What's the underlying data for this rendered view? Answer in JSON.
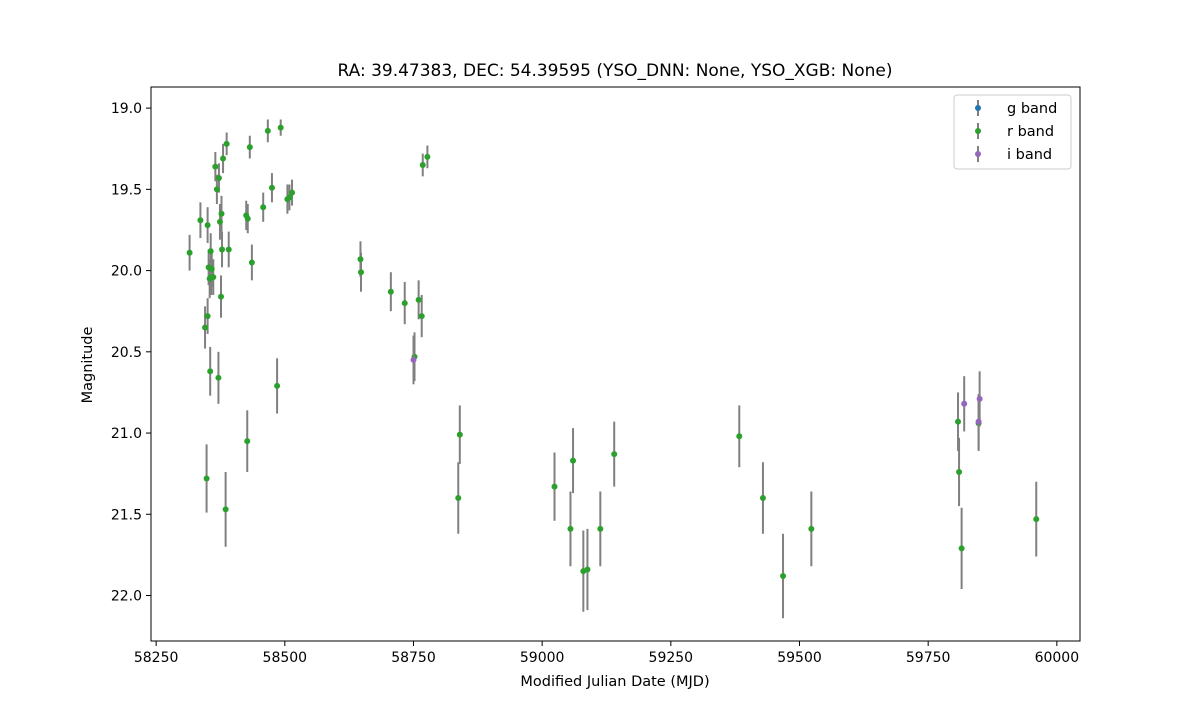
{
  "chart_data": {
    "type": "scatter",
    "title": "RA: 39.47383, DEC: 54.39595 (YSO_DNN: None, YSO_XGB: None)",
    "xlabel": "Modified Julian Date (MJD)",
    "ylabel": "Magnitude",
    "xlim": [
      58240,
      60045
    ],
    "ylim": [
      22.28,
      18.87
    ],
    "y_inverted": true,
    "xticks": [
      58250,
      58500,
      58750,
      59000,
      59250,
      59500,
      59750,
      60000
    ],
    "yticks": [
      19.0,
      19.5,
      20.0,
      20.5,
      21.0,
      21.5,
      22.0
    ],
    "xtick_labels": [
      "58250",
      "58500",
      "58750",
      "59000",
      "59250",
      "59500",
      "59750",
      "60000"
    ],
    "ytick_labels": [
      "19.0",
      "19.5",
      "20.0",
      "20.5",
      "21.0",
      "21.5",
      "22.0"
    ],
    "grid": false,
    "legend_position": "top-right",
    "errorbar_color": "#808080",
    "series": [
      {
        "name": "g band",
        "color": "#1f77b4",
        "points": []
      },
      {
        "name": "r band",
        "color": "#2ca02c",
        "points": [
          [
            58315,
            19.89,
            0.11
          ],
          [
            58336,
            19.69,
            0.11
          ],
          [
            58345,
            20.35,
            0.13
          ],
          [
            58348,
            21.28,
            0.21
          ],
          [
            58350,
            20.28,
            0.11
          ],
          [
            58350,
            19.72,
            0.11
          ],
          [
            58352,
            19.98,
            0.11
          ],
          [
            58354,
            20.05,
            0.12
          ],
          [
            58355,
            20.62,
            0.15
          ],
          [
            58356,
            19.88,
            0.11
          ],
          [
            58357,
            20.04,
            0.11
          ],
          [
            58358,
            19.99,
            0.11
          ],
          [
            58361,
            20.04,
            0.11
          ],
          [
            58365,
            19.36,
            0.09
          ],
          [
            58368,
            19.5,
            0.09
          ],
          [
            58371,
            20.66,
            0.16
          ],
          [
            58372,
            19.43,
            0.09
          ],
          [
            58374,
            19.7,
            0.11
          ],
          [
            58376,
            20.16,
            0.13
          ],
          [
            58377,
            19.65,
            0.11
          ],
          [
            58378,
            19.87,
            0.11
          ],
          [
            58380,
            19.31,
            0.09
          ],
          [
            58385,
            21.47,
            0.23
          ],
          [
            58387,
            19.22,
            0.07
          ],
          [
            58391,
            19.87,
            0.11
          ],
          [
            58425,
            19.66,
            0.09
          ],
          [
            58427,
            21.05,
            0.19
          ],
          [
            58428,
            19.68,
            0.09
          ],
          [
            58432,
            19.24,
            0.07
          ],
          [
            58436,
            19.95,
            0.11
          ],
          [
            58458,
            19.61,
            0.09
          ],
          [
            58467,
            19.14,
            0.07
          ],
          [
            58475,
            19.49,
            0.09
          ],
          [
            58485,
            20.71,
            0.17
          ],
          [
            58492,
            19.12,
            0.05
          ],
          [
            58505,
            19.56,
            0.09
          ],
          [
            58509,
            19.55,
            0.08
          ],
          [
            58514,
            19.52,
            0.08
          ],
          [
            58647,
            19.93,
            0.11
          ],
          [
            58648,
            20.01,
            0.12
          ],
          [
            58706,
            20.13,
            0.12
          ],
          [
            58733,
            20.2,
            0.13
          ],
          [
            58752,
            20.53,
            0.15
          ],
          [
            58760,
            20.18,
            0.12
          ],
          [
            58766,
            20.28,
            0.13
          ],
          [
            58768,
            19.35,
            0.07
          ],
          [
            58777,
            19.3,
            0.07
          ],
          [
            58837,
            21.4,
            0.22
          ],
          [
            58840,
            21.01,
            0.18
          ],
          [
            59024,
            21.33,
            0.21
          ],
          [
            59055,
            21.59,
            0.23
          ],
          [
            59060,
            21.17,
            0.2
          ],
          [
            59080,
            21.85,
            0.25
          ],
          [
            59088,
            21.84,
            0.25
          ],
          [
            59113,
            21.59,
            0.23
          ],
          [
            59140,
            21.13,
            0.2
          ],
          [
            59383,
            21.02,
            0.19
          ],
          [
            59429,
            21.4,
            0.22
          ],
          [
            59468,
            21.88,
            0.26
          ],
          [
            59523,
            21.59,
            0.23
          ],
          [
            59808,
            20.93,
            0.18
          ],
          [
            59810,
            21.24,
            0.21
          ],
          [
            59815,
            21.71,
            0.25
          ],
          [
            59848,
            20.94,
            0.17
          ],
          [
            59960,
            21.53,
            0.23
          ]
        ]
      },
      {
        "name": "i band",
        "color": "#9467bd",
        "points": [
          [
            58750,
            20.55,
            0.15
          ],
          [
            59820,
            20.82,
            0.17
          ],
          [
            59850,
            20.79,
            0.17
          ],
          [
            59848,
            20.93,
            0.17
          ]
        ]
      }
    ]
  }
}
